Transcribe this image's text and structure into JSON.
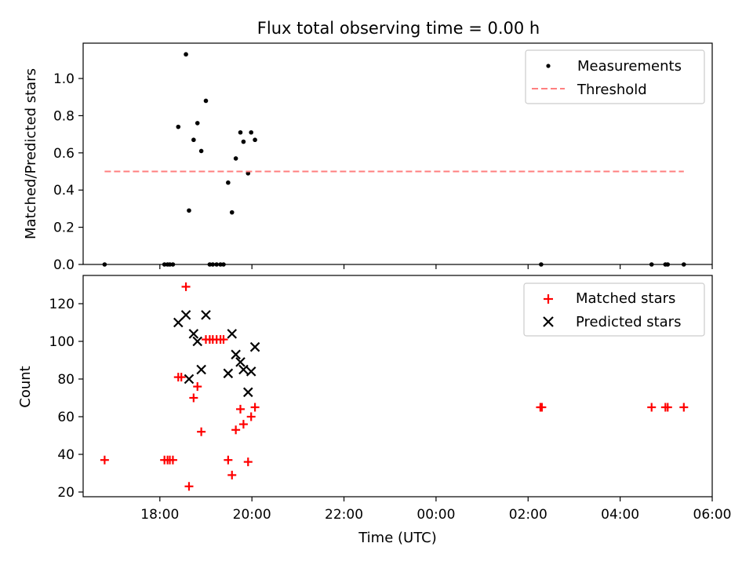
{
  "figure": {
    "title": "Flux total observing time = 0.00 h",
    "xlabel": "Time (UTC)"
  },
  "colors": {
    "measurement": "#000000",
    "threshold": "#ff7f7f",
    "matched": "#ff0000",
    "predicted": "#000000"
  },
  "chart_data": [
    {
      "type": "scatter",
      "panel": "top",
      "ylabel": "Matched/Predicted stars",
      "x_axis_is_time": true,
      "xlim": [
        "16:20",
        "06:00"
      ],
      "ylim": [
        0,
        1.19
      ],
      "yticks": [
        0.0,
        0.2,
        0.4,
        0.6,
        0.8,
        1.0
      ],
      "ytick_labels": [
        "0.0",
        "0.2",
        "0.4",
        "0.6",
        "0.8",
        "1.0"
      ],
      "xticks": [
        "18:00",
        "20:00",
        "22:00",
        "00:00",
        "02:00",
        "04:00",
        "06:00"
      ],
      "legend": {
        "position": "top-right",
        "entries": [
          "Measurements",
          "Threshold"
        ]
      },
      "series": [
        {
          "name": "Measurements",
          "marker": "dot",
          "points": [
            {
              "x": "16:48",
              "y": 0.0
            },
            {
              "x": "18:06",
              "y": 0.0
            },
            {
              "x": "18:10",
              "y": 0.0
            },
            {
              "x": "18:13",
              "y": 0.0
            },
            {
              "x": "18:17",
              "y": 0.0
            },
            {
              "x": "18:24",
              "y": 0.74
            },
            {
              "x": "18:34",
              "y": 1.13
            },
            {
              "x": "18:38",
              "y": 0.29
            },
            {
              "x": "18:44",
              "y": 0.67
            },
            {
              "x": "18:49",
              "y": 0.76
            },
            {
              "x": "18:54",
              "y": 0.61
            },
            {
              "x": "19:00",
              "y": 0.88
            },
            {
              "x": "19:05",
              "y": 0.0
            },
            {
              "x": "19:09",
              "y": 0.0
            },
            {
              "x": "19:14",
              "y": 0.0
            },
            {
              "x": "19:19",
              "y": 0.0
            },
            {
              "x": "19:23",
              "y": 0.0
            },
            {
              "x": "19:29",
              "y": 0.44
            },
            {
              "x": "19:34",
              "y": 0.28
            },
            {
              "x": "19:39",
              "y": 0.57
            },
            {
              "x": "19:45",
              "y": 0.71
            },
            {
              "x": "19:49",
              "y": 0.66
            },
            {
              "x": "19:55",
              "y": 0.49
            },
            {
              "x": "19:59",
              "y": 0.71
            },
            {
              "x": "20:04",
              "y": 0.67
            },
            {
              "x": "02:17",
              "y": 0.0
            },
            {
              "x": "04:41",
              "y": 0.0
            },
            {
              "x": "04:59",
              "y": 0.0
            },
            {
              "x": "05:02",
              "y": 0.0
            },
            {
              "x": "05:23",
              "y": 0.0
            }
          ]
        },
        {
          "name": "Threshold",
          "line": "dashed",
          "points": [
            {
              "x": "16:48",
              "y": 0.5
            },
            {
              "x": "05:23",
              "y": 0.5
            }
          ]
        }
      ]
    },
    {
      "type": "scatter",
      "panel": "bottom",
      "ylabel": "Count",
      "x_axis_is_time": true,
      "xlim": [
        "16:20",
        "06:00"
      ],
      "ylim": [
        17.5,
        135
      ],
      "yticks": [
        20,
        40,
        60,
        80,
        100,
        120
      ],
      "ytick_labels": [
        "20",
        "40",
        "60",
        "80",
        "100",
        "120"
      ],
      "xticks": [
        "18:00",
        "20:00",
        "22:00",
        "00:00",
        "02:00",
        "04:00",
        "06:00"
      ],
      "xtick_labels": [
        "18:00",
        "20:00",
        "22:00",
        "00:00",
        "02:00",
        "04:00",
        "06:00"
      ],
      "legend": {
        "position": "top-right",
        "entries": [
          "Matched stars",
          "Predicted stars"
        ]
      },
      "series": [
        {
          "name": "Matched stars",
          "marker": "plus",
          "points": [
            {
              "x": "16:48",
              "y": 37
            },
            {
              "x": "18:06",
              "y": 37
            },
            {
              "x": "18:10",
              "y": 37
            },
            {
              "x": "18:13",
              "y": 37
            },
            {
              "x": "18:17",
              "y": 37
            },
            {
              "x": "18:24",
              "y": 81
            },
            {
              "x": "18:28",
              "y": 81
            },
            {
              "x": "18:34",
              "y": 129
            },
            {
              "x": "18:38",
              "y": 23
            },
            {
              "x": "18:44",
              "y": 70
            },
            {
              "x": "18:49",
              "y": 76
            },
            {
              "x": "18:54",
              "y": 52
            },
            {
              "x": "19:00",
              "y": 101
            },
            {
              "x": "19:05",
              "y": 101
            },
            {
              "x": "19:09",
              "y": 101
            },
            {
              "x": "19:14",
              "y": 101
            },
            {
              "x": "19:19",
              "y": 101
            },
            {
              "x": "19:23",
              "y": 101
            },
            {
              "x": "19:29",
              "y": 37
            },
            {
              "x": "19:34",
              "y": 29
            },
            {
              "x": "19:39",
              "y": 53
            },
            {
              "x": "19:45",
              "y": 64
            },
            {
              "x": "19:49",
              "y": 56
            },
            {
              "x": "19:55",
              "y": 36
            },
            {
              "x": "19:59",
              "y": 60
            },
            {
              "x": "20:04",
              "y": 65
            },
            {
              "x": "02:16",
              "y": 65
            },
            {
              "x": "02:18",
              "y": 65
            },
            {
              "x": "04:41",
              "y": 65
            },
            {
              "x": "04:59",
              "y": 65
            },
            {
              "x": "05:02",
              "y": 65
            },
            {
              "x": "05:23",
              "y": 65
            }
          ]
        },
        {
          "name": "Predicted stars",
          "marker": "x",
          "points": [
            {
              "x": "18:24",
              "y": 110
            },
            {
              "x": "18:34",
              "y": 114
            },
            {
              "x": "18:38",
              "y": 80
            },
            {
              "x": "18:44",
              "y": 104
            },
            {
              "x": "18:49",
              "y": 100
            },
            {
              "x": "18:54",
              "y": 85
            },
            {
              "x": "19:00",
              "y": 114
            },
            {
              "x": "19:29",
              "y": 83
            },
            {
              "x": "19:34",
              "y": 104
            },
            {
              "x": "19:39",
              "y": 93
            },
            {
              "x": "19:45",
              "y": 89
            },
            {
              "x": "19:49",
              "y": 85
            },
            {
              "x": "19:55",
              "y": 73
            },
            {
              "x": "19:59",
              "y": 84
            },
            {
              "x": "20:04",
              "y": 97
            }
          ]
        }
      ]
    }
  ]
}
